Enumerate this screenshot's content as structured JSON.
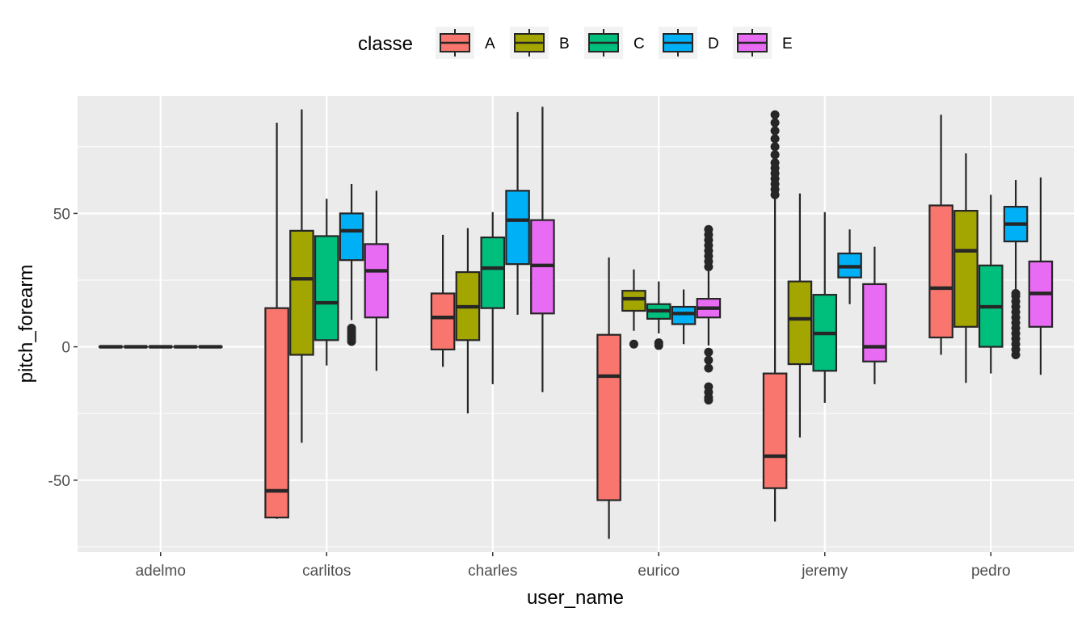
{
  "chart_data": {
    "type": "boxplot",
    "xlabel": "user_name",
    "ylabel": "pitch_forearm",
    "categories": [
      "adelmo",
      "carlitos",
      "charles",
      "eurico",
      "jeremy",
      "pedro"
    ],
    "ylim": [
      -77,
      94
    ],
    "yticks": [
      -50,
      0,
      50
    ],
    "grid": true,
    "legend": {
      "title": "classe",
      "position": "top"
    },
    "series": [
      {
        "name": "A",
        "color": "#F8766D",
        "boxes": [
          {
            "q1": 0,
            "median": 0,
            "q3": 0,
            "whisker_low": 0,
            "whisker_high": 0,
            "outliers": []
          },
          {
            "q1": -64,
            "median": -54,
            "q3": 14.5,
            "whisker_low": -64.5,
            "whisker_high": 84,
            "outliers": []
          },
          {
            "q1": -1,
            "median": 11,
            "q3": 20,
            "whisker_low": -7.5,
            "whisker_high": 42,
            "outliers": []
          },
          {
            "q1": -57.5,
            "median": -11,
            "q3": 4.5,
            "whisker_low": -72,
            "whisker_high": 33.5,
            "outliers": []
          },
          {
            "q1": -53,
            "median": -41,
            "q3": -10,
            "whisker_low": -65.5,
            "whisker_high": 55.5,
            "outliers": [
              57,
              59,
              61,
              63,
              65,
              67,
              69,
              72,
              75,
              78,
              81,
              84,
              87
            ]
          },
          {
            "q1": 3.5,
            "median": 22,
            "q3": 53,
            "whisker_low": -3,
            "whisker_high": 87,
            "outliers": []
          }
        ]
      },
      {
        "name": "B",
        "color": "#A3A500",
        "boxes": [
          {
            "q1": 0,
            "median": 0,
            "q3": 0,
            "whisker_low": 0,
            "whisker_high": 0,
            "outliers": []
          },
          {
            "q1": -3,
            "median": 25.5,
            "q3": 43.5,
            "whisker_low": -36,
            "whisker_high": 89,
            "outliers": []
          },
          {
            "q1": 2.5,
            "median": 15,
            "q3": 28,
            "whisker_low": -25,
            "whisker_high": 44.5,
            "outliers": []
          },
          {
            "q1": 13.5,
            "median": 18,
            "q3": 21,
            "whisker_low": 6,
            "whisker_high": 29,
            "outliers": [
              1
            ]
          },
          {
            "q1": -6.5,
            "median": 10.5,
            "q3": 24.5,
            "whisker_low": -34,
            "whisker_high": 57.5,
            "outliers": []
          },
          {
            "q1": 7.5,
            "median": 36,
            "q3": 51,
            "whisker_low": -13.5,
            "whisker_high": 72.5,
            "outliers": []
          }
        ]
      },
      {
        "name": "C",
        "color": "#00BF7D",
        "boxes": [
          {
            "q1": 0,
            "median": 0,
            "q3": 0,
            "whisker_low": 0,
            "whisker_high": 0,
            "outliers": []
          },
          {
            "q1": 2.5,
            "median": 16.5,
            "q3": 41.5,
            "whisker_low": -7,
            "whisker_high": 55.5,
            "outliers": []
          },
          {
            "q1": 14.5,
            "median": 29.5,
            "q3": 41,
            "whisker_low": -14,
            "whisker_high": 50.5,
            "outliers": []
          },
          {
            "q1": 10.5,
            "median": 13.5,
            "q3": 16,
            "whisker_low": 5,
            "whisker_high": 24.5,
            "outliers": [
              0.5,
              1.5
            ]
          },
          {
            "q1": -9,
            "median": 5,
            "q3": 19.5,
            "whisker_low": -21,
            "whisker_high": 50.5,
            "outliers": []
          },
          {
            "q1": 0,
            "median": 15,
            "q3": 30.5,
            "whisker_low": -10,
            "whisker_high": 57,
            "outliers": []
          }
        ]
      },
      {
        "name": "D",
        "color": "#00B0F6",
        "boxes": [
          {
            "q1": 0,
            "median": 0,
            "q3": 0,
            "whisker_low": 0,
            "whisker_high": 0,
            "outliers": []
          },
          {
            "q1": 32.5,
            "median": 43.5,
            "q3": 50,
            "whisker_low": 10,
            "whisker_high": 61,
            "outliers": [
              2,
              3,
              4,
              5,
              6,
              7
            ]
          },
          {
            "q1": 31,
            "median": 47.5,
            "q3": 58.5,
            "whisker_low": 12,
            "whisker_high": 88,
            "outliers": []
          },
          {
            "q1": 8.5,
            "median": 12.5,
            "q3": 15,
            "whisker_low": 1,
            "whisker_high": 21.5,
            "outliers": []
          },
          {
            "q1": 26,
            "median": 30,
            "q3": 35,
            "whisker_low": 16,
            "whisker_high": 44,
            "outliers": []
          },
          {
            "q1": 39.5,
            "median": 46,
            "q3": 52.5,
            "whisker_low": 21,
            "whisker_high": 62.5,
            "outliers": [
              -3,
              -1,
              1,
              3,
              5,
              7,
              9,
              11,
              13,
              15,
              17,
              19,
              20
            ]
          }
        ]
      },
      {
        "name": "E",
        "color": "#E76BF3",
        "boxes": [
          {
            "q1": 0,
            "median": 0,
            "q3": 0,
            "whisker_low": 0,
            "whisker_high": 0,
            "outliers": []
          },
          {
            "q1": 11,
            "median": 28.5,
            "q3": 38.5,
            "whisker_low": -9,
            "whisker_high": 58.5,
            "outliers": []
          },
          {
            "q1": 12.5,
            "median": 30.5,
            "q3": 47.5,
            "whisker_low": -17,
            "whisker_high": 90,
            "outliers": []
          },
          {
            "q1": 11,
            "median": 14.5,
            "q3": 18,
            "whisker_low": 0.5,
            "whisker_high": 28.5,
            "outliers": [
              -20,
              -19,
              -17,
              -15,
              -8,
              -5,
              -2,
              30,
              32,
              34,
              36,
              38,
              40,
              42,
              44
            ]
          },
          {
            "q1": -5.5,
            "median": 0,
            "q3": 23.5,
            "whisker_low": -14,
            "whisker_high": 37.5,
            "outliers": []
          },
          {
            "q1": 7.5,
            "median": 20,
            "q3": 32,
            "whisker_low": -10.5,
            "whisker_high": 63.5,
            "outliers": []
          }
        ]
      }
    ]
  }
}
